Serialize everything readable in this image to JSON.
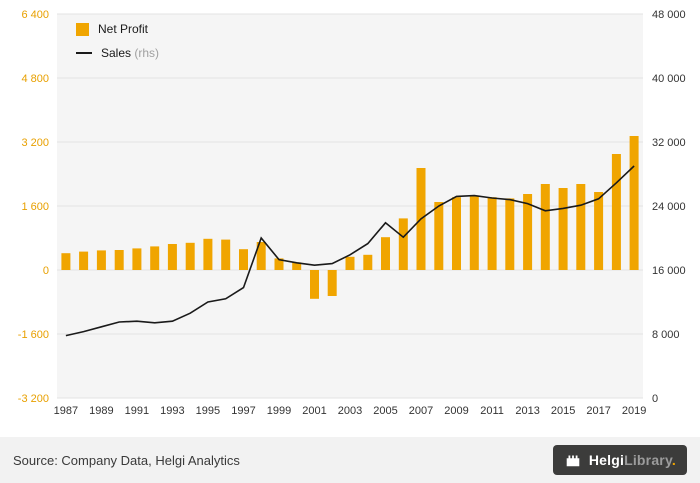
{
  "chart_data": {
    "type": "bar",
    "title": "",
    "xlabel": "",
    "ylabel_left": "",
    "ylabel_right": "",
    "categories": [
      "1987",
      "1988",
      "1989",
      "1990",
      "1991",
      "1992",
      "1993",
      "1994",
      "1995",
      "1996",
      "1997",
      "1998",
      "1999",
      "2000",
      "2001",
      "2002",
      "2003",
      "2004",
      "2005",
      "2006",
      "2007",
      "2008",
      "2009",
      "2010",
      "2011",
      "2012",
      "2013",
      "2014",
      "2015",
      "2016",
      "2017",
      "2018",
      "2019"
    ],
    "series": [
      {
        "name": "Net Profit",
        "type": "bar",
        "axis": "left",
        "values": [
          420,
          460,
          490,
          500,
          540,
          590,
          650,
          680,
          780,
          760,
          520,
          700,
          290,
          190,
          -720,
          -650,
          330,
          380,
          820,
          1290,
          2550,
          1700,
          1820,
          1850,
          1820,
          1790,
          1900,
          2150,
          2050,
          2150,
          1950,
          2900,
          3350
        ]
      },
      {
        "name": "Sales",
        "type": "line",
        "axis": "right",
        "values": [
          7800,
          8300,
          8900,
          9500,
          9600,
          9400,
          9600,
          10600,
          12000,
          12400,
          13800,
          20000,
          17300,
          16900,
          16600,
          16800,
          17900,
          19300,
          21900,
          20100,
          22400,
          24000,
          25200,
          25300,
          25000,
          24800,
          24300,
          23400,
          23700,
          24100,
          24900,
          26900,
          29000
        ]
      }
    ],
    "left_axis": {
      "min": -3200,
      "max": 6400,
      "step": 1600,
      "tick_labels": [
        "6 400",
        "4 800",
        "3 200",
        "1 600",
        "0",
        "-1 600",
        "-3 200"
      ]
    },
    "right_axis": {
      "min": 0,
      "max": 48000,
      "step": 8000,
      "tick_labels": [
        "48 000",
        "40 000",
        "32 000",
        "24 000",
        "16 000",
        "8 000",
        "0"
      ]
    },
    "x_tick_labels": [
      "1987",
      "1989",
      "1991",
      "1993",
      "1995",
      "1997",
      "1999",
      "2001",
      "2003",
      "2005",
      "2007",
      "2009",
      "2011",
      "2013",
      "2015",
      "2017",
      "2019"
    ],
    "grid": true,
    "legend_position": "top-left"
  },
  "legend": {
    "net_profit_label": "Net Profit",
    "sales_label": "Sales",
    "sales_suffix": "(rhs)"
  },
  "footer": {
    "source_text": "Source: Company Data, Helgi Analytics"
  },
  "logo": {
    "name_part1": "Helgi",
    "name_part2": "Library",
    "name_dot": "."
  },
  "colors": {
    "bar": "#F0A500",
    "line": "#1A1A1A",
    "left_axis_text": "#E8A000",
    "axis_text": "#333333",
    "plot_bg": "#F5F5F5",
    "grid": "#E3E3E3",
    "footer_bg": "#F2F2F2",
    "logo_bg": "#3C3C3B"
  }
}
